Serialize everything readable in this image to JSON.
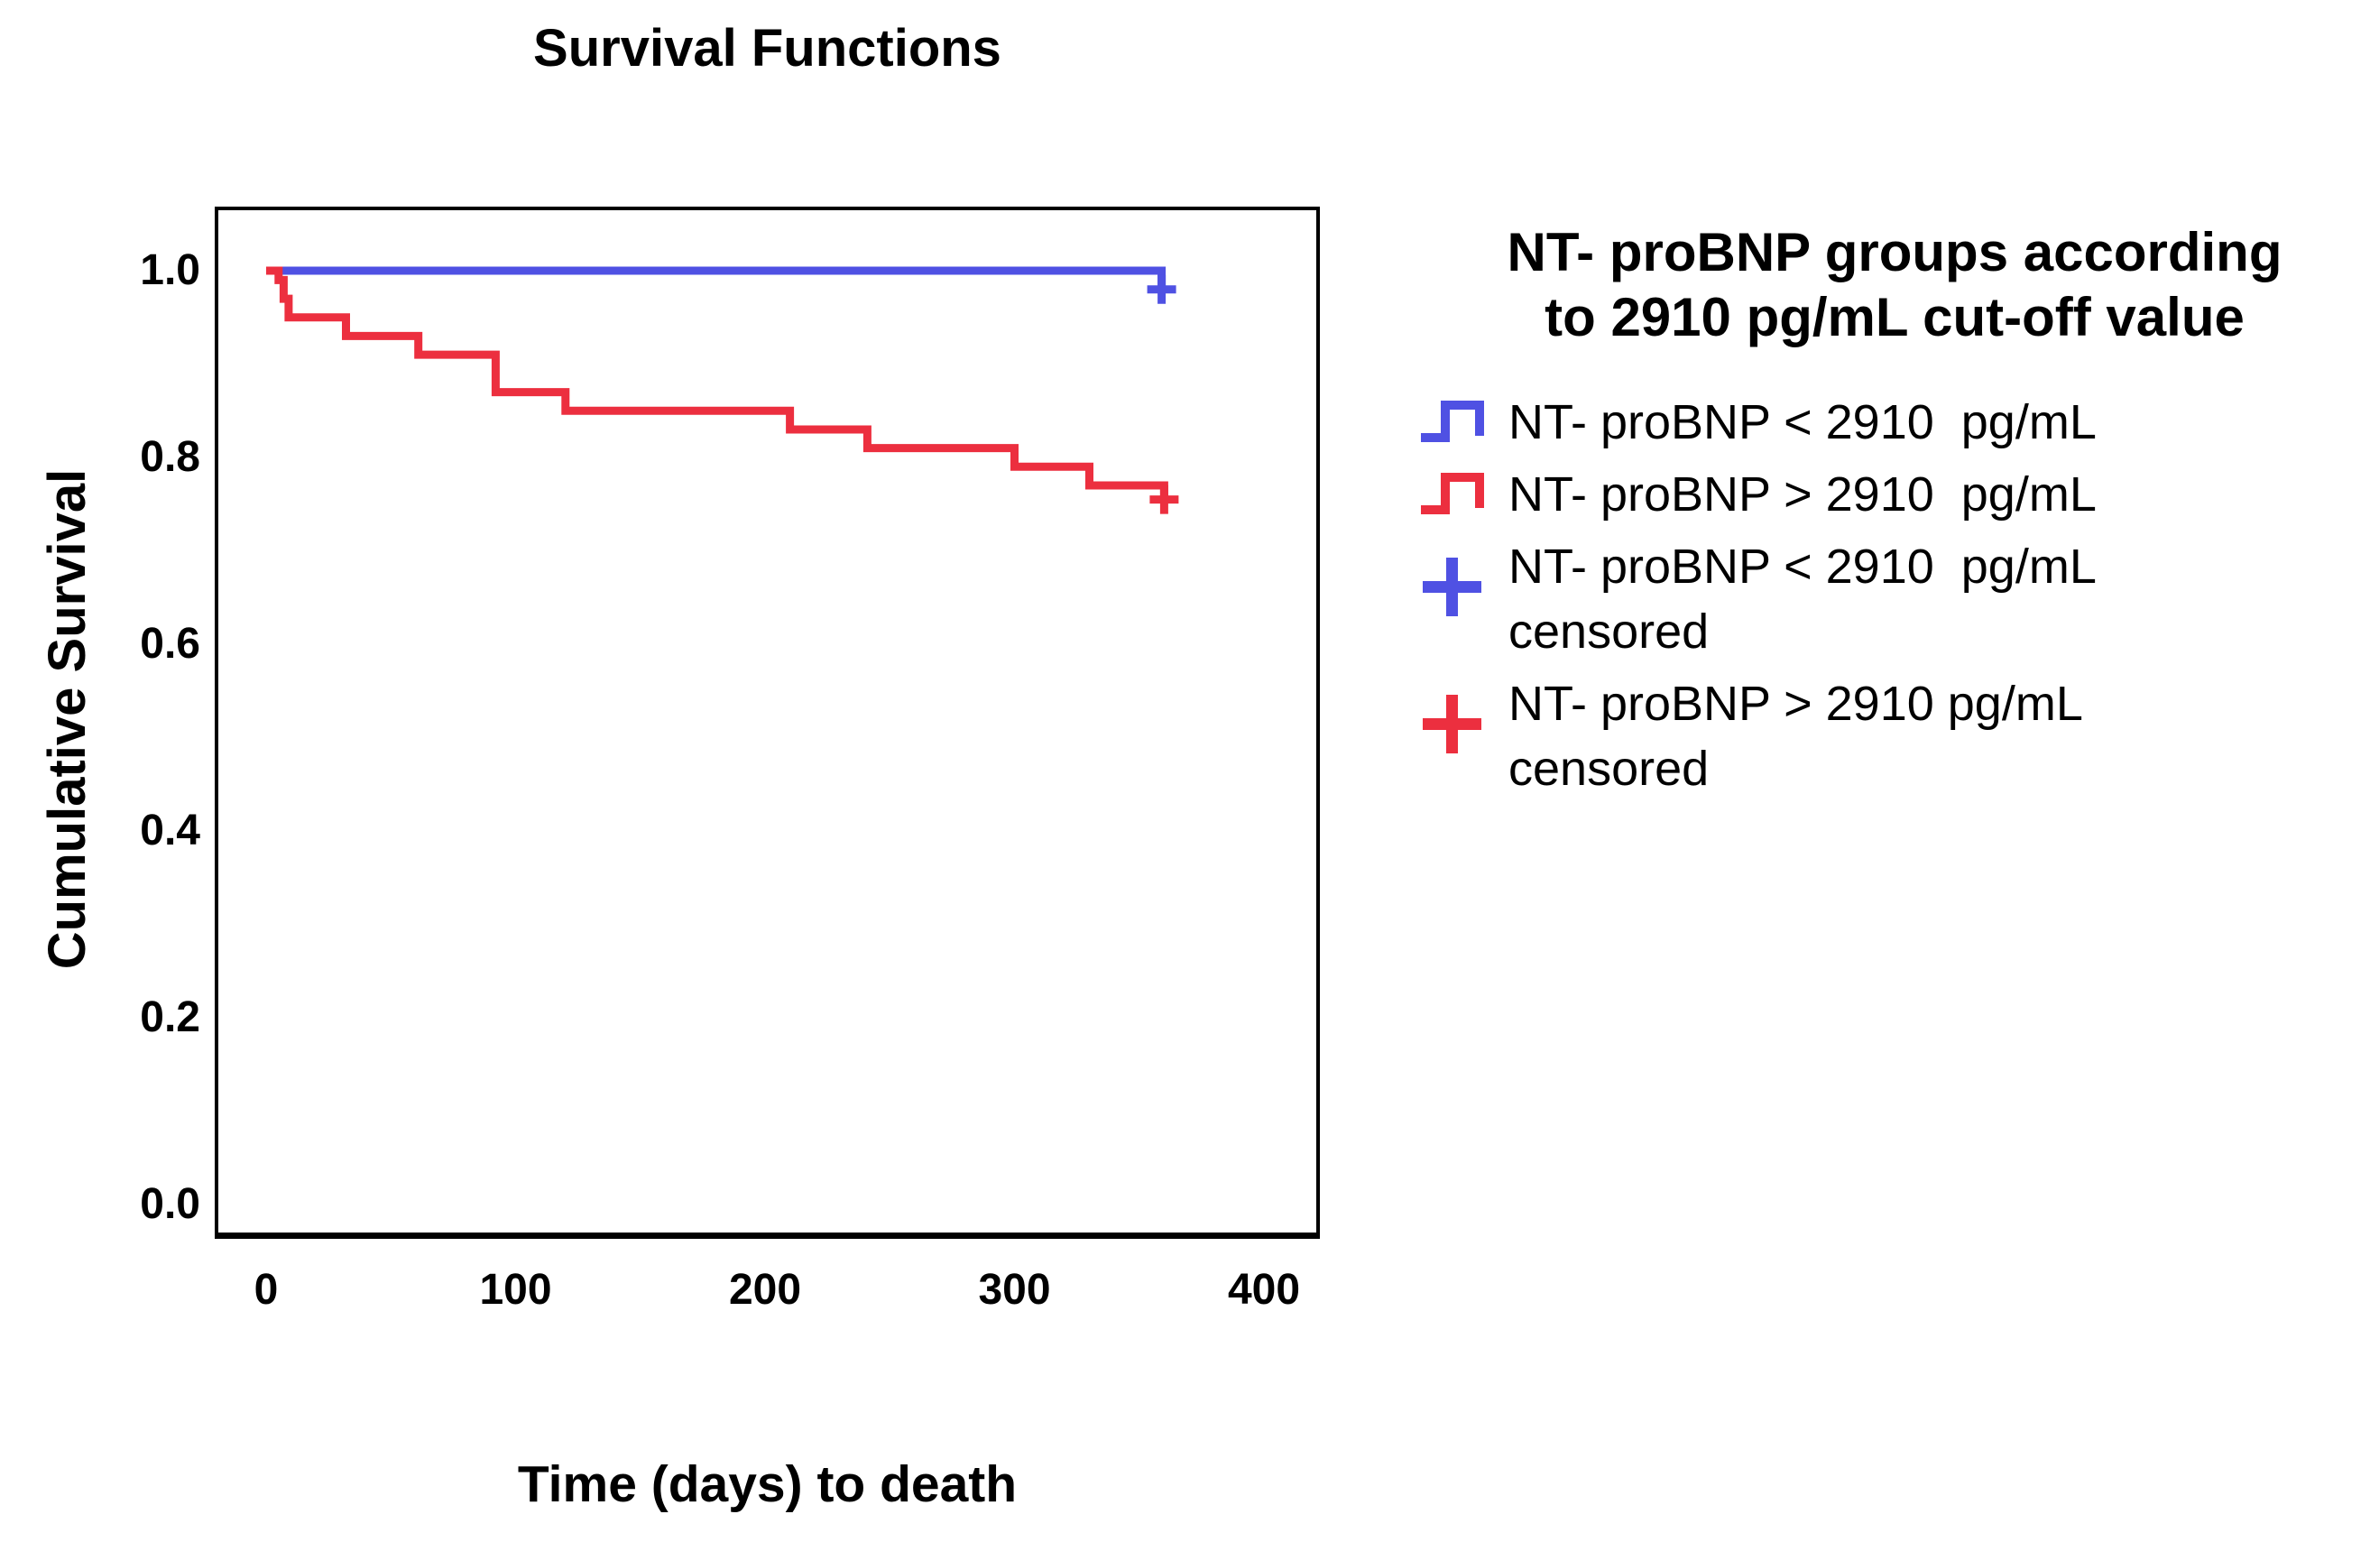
{
  "title": "Survival Functions",
  "chart_data": {
    "type": "line",
    "variant": "kaplan_meier_step",
    "title": "Survival Functions",
    "xlabel": "Time (days) to death",
    "ylabel": "Cumulative Survival",
    "xlim": [
      0,
      400
    ],
    "ylim": [
      0.0,
      1.0
    ],
    "grid": false,
    "legend_position": "right",
    "x_ticks": [
      {
        "value": 0,
        "label": "0"
      },
      {
        "value": 100,
        "label": "100"
      },
      {
        "value": 200,
        "label": "200"
      },
      {
        "value": 300,
        "label": "300"
      },
      {
        "value": 400,
        "label": "400"
      }
    ],
    "y_ticks": [
      {
        "value": 1.0,
        "label": "1.0"
      },
      {
        "value": 0.8,
        "label": "0.8"
      },
      {
        "value": 0.6,
        "label": "0.6"
      },
      {
        "value": 0.4,
        "label": "0.4"
      },
      {
        "value": 0.2,
        "label": "0.2"
      },
      {
        "value": 0.0,
        "label": "0.0"
      }
    ],
    "series": [
      {
        "name": "NT- proBNP < 2910  pg/mL",
        "color": "#4F51E3",
        "step_points": [
          [
            0,
            1.0
          ],
          [
            359,
            0.98
          ]
        ],
        "censored": [
          [
            359,
            0.98
          ]
        ]
      },
      {
        "name": "NT- proBNP > 2910  pg/mL",
        "color": "#EC2F3F",
        "step_points": [
          [
            0,
            1.0
          ],
          [
            5,
            0.99
          ],
          [
            7,
            0.97
          ],
          [
            9,
            0.95
          ],
          [
            32,
            0.93
          ],
          [
            61,
            0.91
          ],
          [
            92,
            0.87
          ],
          [
            120,
            0.85
          ],
          [
            210,
            0.83
          ],
          [
            241,
            0.81
          ],
          [
            300,
            0.79
          ],
          [
            330,
            0.77
          ],
          [
            360,
            0.755
          ]
        ],
        "censored": [
          [
            360,
            0.755
          ]
        ]
      }
    ]
  },
  "legend": {
    "title_lines": [
      "NT- proBNP groups according",
      "to 2910 pg/mL cut-off value"
    ],
    "items": [
      {
        "marker": "step-line-icon",
        "color": "#4F51E3",
        "lines": [
          "NT- proBNP < 2910  pg/mL"
        ]
      },
      {
        "marker": "step-line-icon",
        "color": "#EC2F3F",
        "lines": [
          "NT- proBNP > 2910  pg/mL"
        ]
      },
      {
        "marker": "plus-icon",
        "color": "#4F51E3",
        "lines": [
          "NT- proBNP < 2910  pg/mL",
          "censored"
        ]
      },
      {
        "marker": "plus-icon",
        "color": "#EC2F3F",
        "lines": [
          "NT- proBNP > 2910 pg/mL",
          "censored"
        ]
      }
    ]
  },
  "colors": {
    "curve_below_cutoff": "#4F51E3",
    "curve_above_cutoff": "#EC2F3F",
    "axis": "#000000",
    "background": "#FFFFFF"
  }
}
